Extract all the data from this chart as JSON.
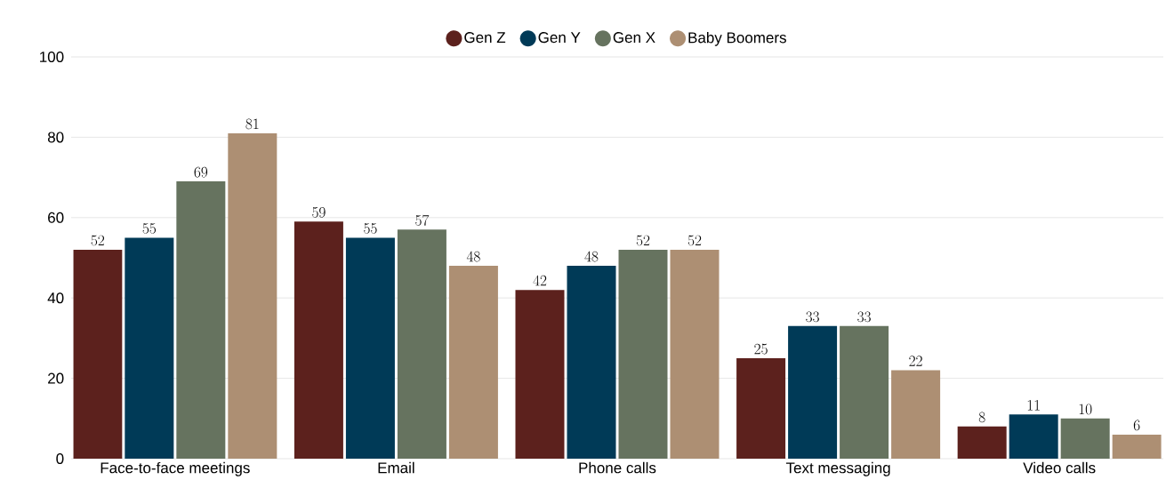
{
  "chart_data": {
    "type": "bar",
    "categories": [
      "Face-to-face meetings",
      "Email",
      "Phone calls",
      "Text messaging",
      "Video calls"
    ],
    "series": [
      {
        "name": "Gen Z",
        "color": "#5c211d",
        "values": [
          52,
          59,
          42,
          25,
          8
        ]
      },
      {
        "name": "Gen Y",
        "color": "#003a57",
        "values": [
          55,
          55,
          48,
          33,
          11
        ]
      },
      {
        "name": "Gen X",
        "color": "#66735f",
        "values": [
          69,
          57,
          52,
          33,
          10
        ]
      },
      {
        "name": "Baby Boomers",
        "color": "#ad8f73",
        "values": [
          81,
          48,
          52,
          22,
          6
        ]
      }
    ],
    "ylim": [
      0,
      100
    ],
    "yticks": [
      0,
      20,
      40,
      60,
      80,
      100
    ],
    "grid": "y",
    "legend": "top",
    "data_labels": true
  }
}
